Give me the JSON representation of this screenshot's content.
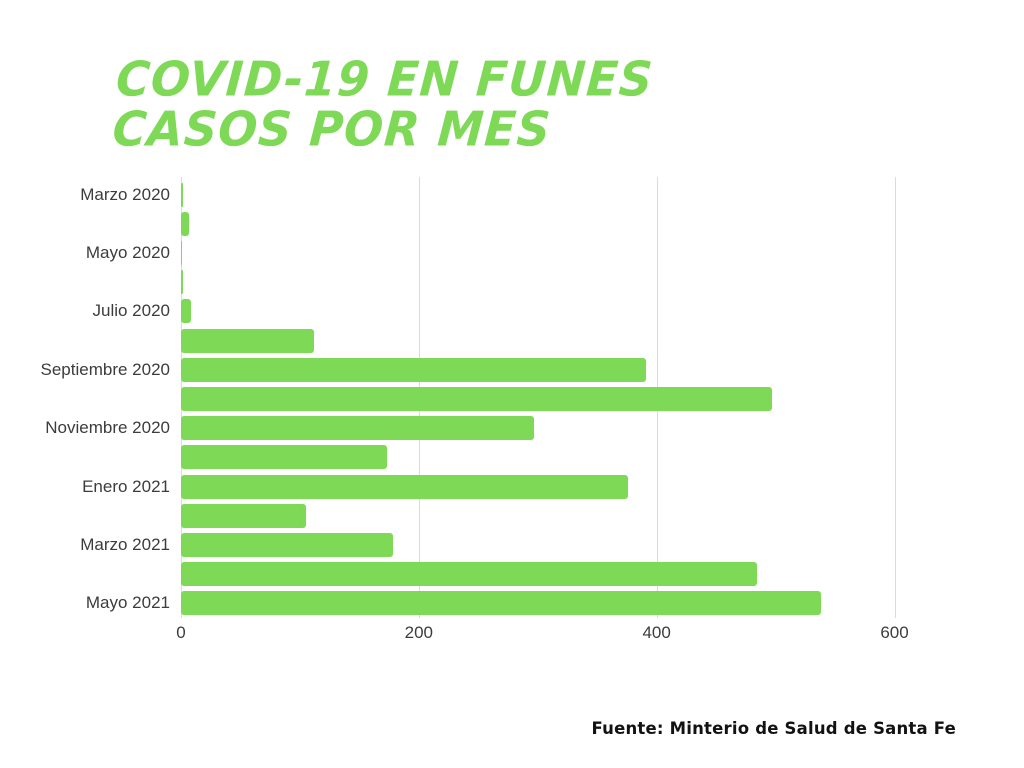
{
  "title": {
    "line1": "COVID-19 EN FUNES",
    "line2": "CASOS POR MES"
  },
  "footer": {
    "source": "Fuente: Minterio de Salud de Santa Fe"
  },
  "colors": {
    "bar": "#7ED957",
    "title": "#7ED957",
    "gridline": "#DBDBDB",
    "axis_text": "#3C3C3C",
    "source_text": "#121212",
    "background": "#FFFFFF"
  },
  "chart_data": {
    "type": "bar",
    "orientation": "horizontal",
    "title": "COVID-19 EN FUNES CASOS POR MES",
    "xlabel": "",
    "ylabel": "",
    "x_ticks": [
      0,
      200,
      400,
      600
    ],
    "xlim": [
      0,
      638
    ],
    "grid": true,
    "legend": false,
    "bars": [
      {
        "label": "Marzo 2020",
        "value": 2
      },
      {
        "label": "",
        "value": 7
      },
      {
        "label": "Mayo 2020",
        "value": 1
      },
      {
        "label": "",
        "value": 2
      },
      {
        "label": "Julio 2020",
        "value": 8
      },
      {
        "label": "",
        "value": 112
      },
      {
        "label": "Septiembre 2020",
        "value": 391
      },
      {
        "label": "",
        "value": 497
      },
      {
        "label": "Noviembre 2020",
        "value": 297
      },
      {
        "label": "",
        "value": 173
      },
      {
        "label": "Enero 2021",
        "value": 376
      },
      {
        "label": "",
        "value": 105
      },
      {
        "label": "Marzo 2021",
        "value": 178
      },
      {
        "label": "",
        "value": 484
      },
      {
        "label": "Mayo 2021",
        "value": 538
      }
    ]
  }
}
